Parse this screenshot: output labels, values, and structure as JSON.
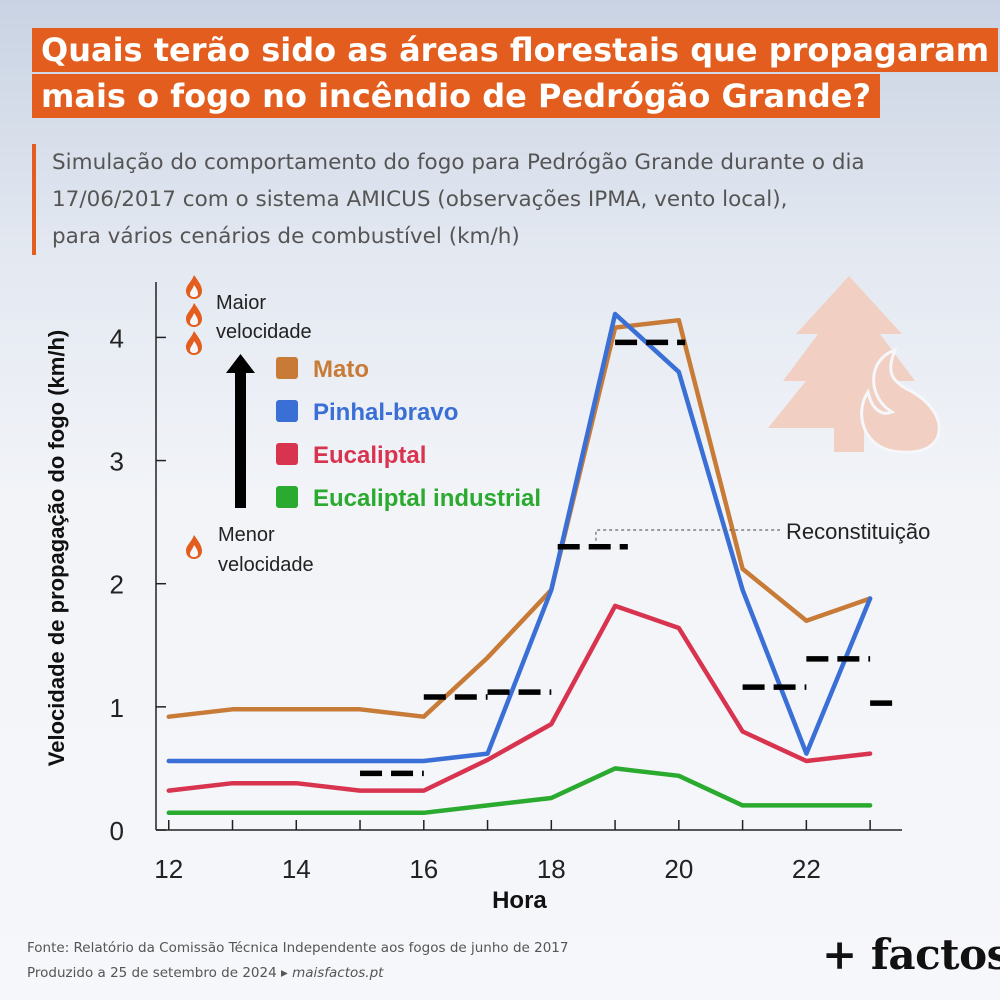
{
  "title": {
    "line1": "Quais terão sido as áreas florestais que propagaram",
    "line2": "mais o fogo no incêndio de Pedrógão Grande?"
  },
  "subtitle": {
    "line1": "Simulação do comportamento do fogo para Pedrógão Grande durante o dia",
    "line2": "17/06/2017 com o sistema AMICUS (observações IPMA, vento local),",
    "line3": "para vários cenários de combustível (km/h)"
  },
  "chart_data": {
    "type": "line",
    "xlabel": "Hora",
    "ylabel": "Velocidade de propagação do fogo (km/h)",
    "xlim": [
      11.8,
      23.5
    ],
    "ylim": [
      0,
      4.45
    ],
    "xticks": [
      12,
      14,
      16,
      18,
      20,
      22
    ],
    "yticks": [
      0,
      1,
      2,
      3,
      4
    ],
    "x": [
      12,
      13,
      14,
      15,
      16,
      17,
      18,
      19,
      20,
      21,
      22,
      23
    ],
    "series": [
      {
        "name": "Mato",
        "color": "#c87b37",
        "values": [
          0.92,
          0.98,
          0.98,
          0.98,
          0.92,
          1.4,
          1.95,
          4.08,
          4.14,
          2.12,
          1.7,
          1.88
        ]
      },
      {
        "name": "Pinhal-bravo",
        "color": "#3a6fd6",
        "values": [
          0.56,
          0.56,
          0.56,
          0.56,
          0.56,
          0.62,
          1.95,
          4.19,
          3.72,
          1.95,
          0.62,
          1.88
        ]
      },
      {
        "name": "Eucaliptal",
        "color": "#d8344f",
        "values": [
          0.32,
          0.38,
          0.38,
          0.32,
          0.32,
          0.57,
          0.86,
          1.82,
          1.64,
          0.8,
          0.56,
          0.62
        ]
      },
      {
        "name": "Eucaliptal industrial",
        "color": "#2aaa2e",
        "values": [
          0.14,
          0.14,
          0.14,
          0.14,
          0.14,
          0.2,
          0.26,
          0.5,
          0.44,
          0.2,
          0.2,
          0.2
        ]
      }
    ],
    "reconstruction": {
      "label": "Reconstituição",
      "segments": [
        {
          "x_start": 15.0,
          "x_end": 16.0,
          "value": 0.46
        },
        {
          "x_start": 16.0,
          "x_end": 17.0,
          "value": 1.08
        },
        {
          "x_start": 17.0,
          "x_end": 18.0,
          "value": 1.12
        },
        {
          "x_start": 18.1,
          "x_end": 19.2,
          "value": 2.3
        },
        {
          "x_start": 19.0,
          "x_end": 20.1,
          "value": 3.96
        },
        {
          "x_start": 21.0,
          "x_end": 22.0,
          "value": 1.16
        },
        {
          "x_start": 22.0,
          "x_end": 23.0,
          "value": 1.39
        },
        {
          "x_start": 23.0,
          "x_end": 23.45,
          "value": 1.03
        }
      ]
    },
    "legend_placement": "top-left",
    "grid": false
  },
  "speed_scale": {
    "high": [
      "Maior",
      "velocidade"
    ],
    "low": [
      "Menor",
      "velocidade"
    ]
  },
  "footer": {
    "source": "Fonte: Relatório da Comissão Técnica Independente aos fogos de junho de 2017",
    "produced": "Produzido a 25 de setembro de 2024 ▸",
    "url": "maisfactos.pt"
  },
  "brand": "+ factos",
  "colors": {
    "accent": "#e25d1e",
    "tree": "#f2cfc3"
  }
}
